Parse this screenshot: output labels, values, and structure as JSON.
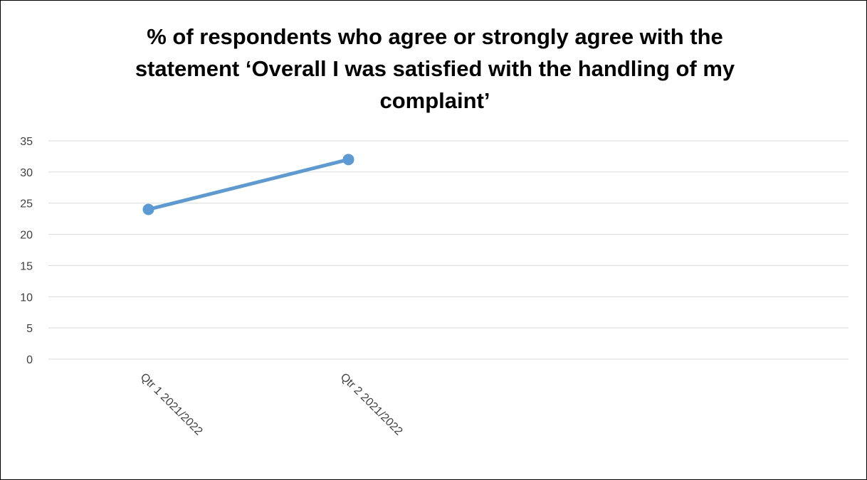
{
  "chart_data": {
    "type": "line",
    "title": "% of respondents who agree or strongly agree with the statement ‘Overall I was satisfied with the handling of my complaint’",
    "categories": [
      "Qtr 1 2021/2022",
      "Qtr 2 2021/2022"
    ],
    "series": [
      {
        "values": [
          24,
          32
        ]
      }
    ],
    "yticks": [
      "0",
      "5",
      "10",
      "15",
      "20",
      "25",
      "30",
      "35"
    ],
    "ylim": [
      0,
      35
    ],
    "grid": true,
    "legend": "none",
    "line_color": "#5B9BD5",
    "grid_color": "#D9D9D9"
  }
}
